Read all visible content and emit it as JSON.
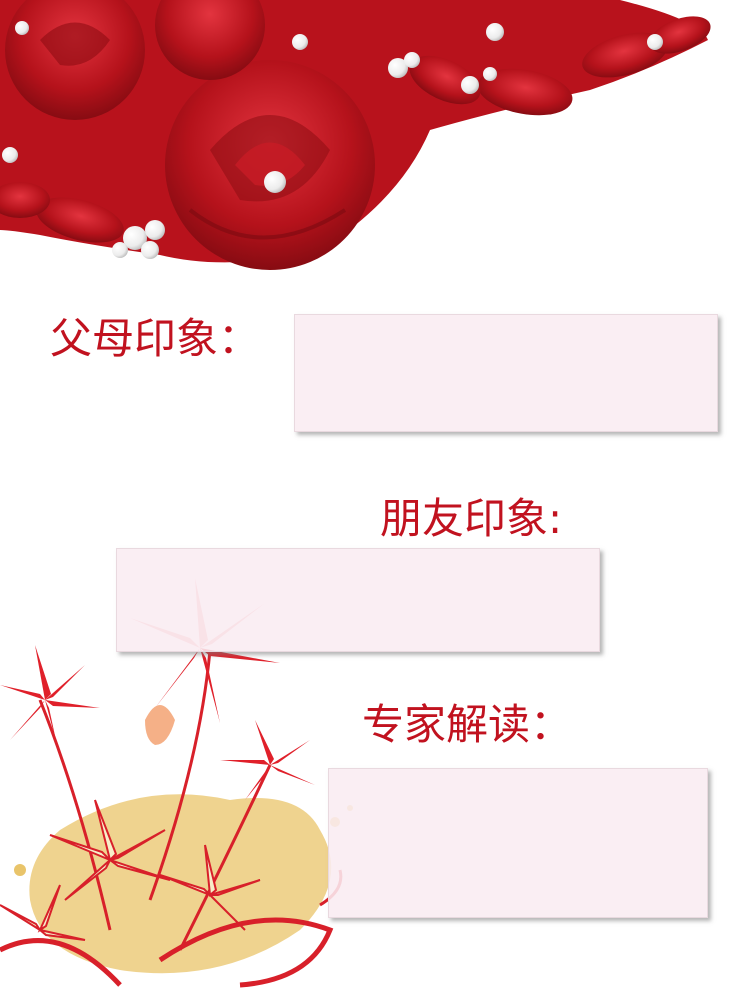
{
  "sections": {
    "parents": {
      "label": "父母印象："
    },
    "friends": {
      "label": "朋友印象:"
    },
    "expert": {
      "label": "专家解读："
    }
  },
  "colors": {
    "accent": "#c1121f",
    "box_fill": "#f9ecf1",
    "rose": "#b5121b",
    "lily_red": "#e0202a",
    "lily_cream": "#f7eec9",
    "gold": "#e9c46a"
  },
  "decor": {
    "top": "red-roses-and-pearls",
    "bottom": "red-and-cream-lily-bouquet"
  }
}
